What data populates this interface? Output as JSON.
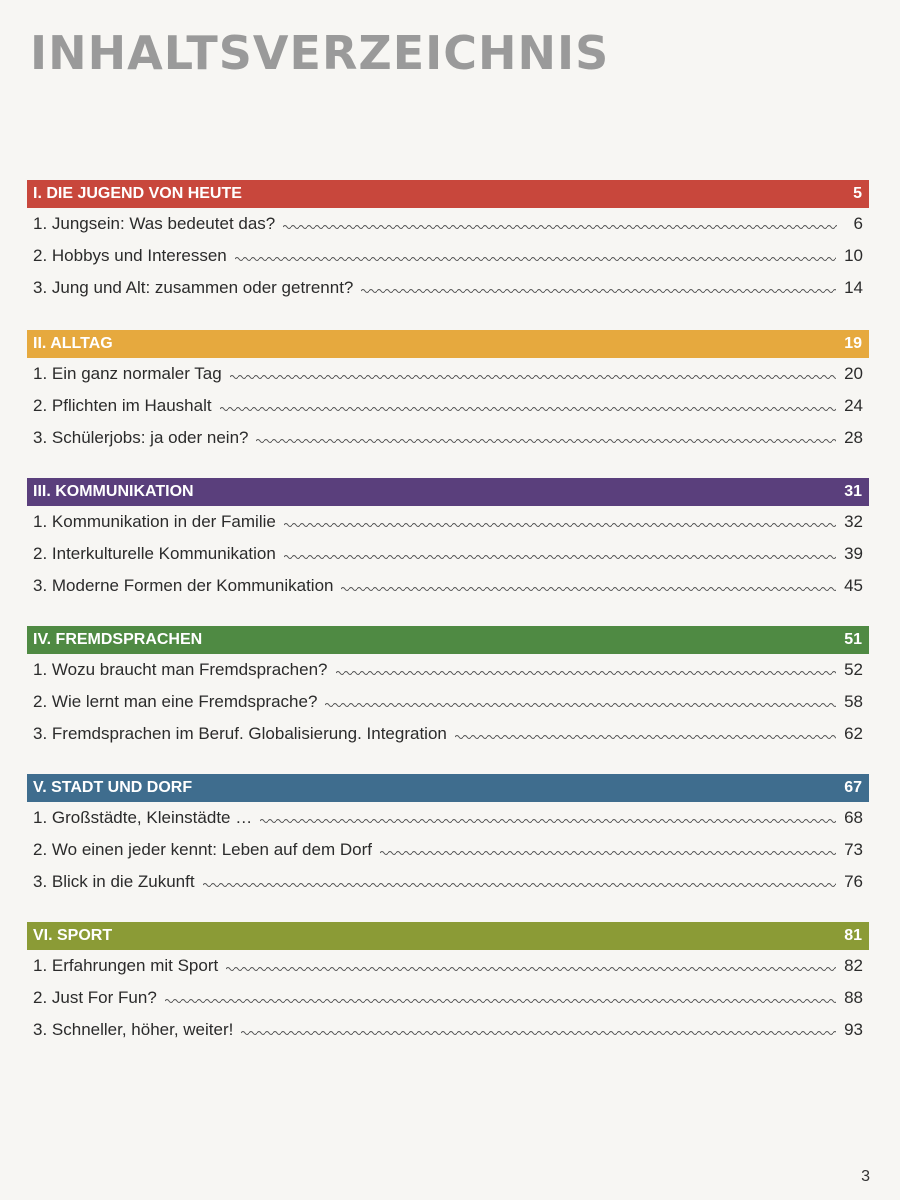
{
  "title": "INHALTSVERZEICHNIS",
  "page_number": "3",
  "colors": {
    "chapter1": "#c8473c",
    "chapter2": "#e6a93e",
    "chapter3": "#5a3f7c",
    "chapter4": "#4f8a43",
    "chapter5": "#3f6d8e",
    "chapter6": "#8b9b36"
  },
  "chapters": [
    {
      "title": "I. DIE JUGEND VON HEUTE",
      "page": "5",
      "entries": [
        {
          "label": "1. Jungsein: Was bedeutet das?",
          "page": "6"
        },
        {
          "label": "2. Hobbys und Interessen",
          "page": "10"
        },
        {
          "label": "3. Jung und Alt: zusammen oder getrennt?",
          "page": "14"
        }
      ]
    },
    {
      "title": "II. ALLTAG",
      "page": "19",
      "entries": [
        {
          "label": "1. Ein ganz normaler Tag",
          "page": "20"
        },
        {
          "label": "2. Pflichten im Haushalt",
          "page": "24"
        },
        {
          "label": "3. Schülerjobs: ja oder nein?",
          "page": "28"
        }
      ]
    },
    {
      "title": "III. KOMMUNIKATION",
      "page": "31",
      "entries": [
        {
          "label": "1. Kommunikation in der Familie",
          "page": "32"
        },
        {
          "label": "2. Interkulturelle Kommunikation",
          "page": "39"
        },
        {
          "label": "3. Moderne Formen der Kommunikation",
          "page": "45"
        }
      ]
    },
    {
      "title": "IV. FREMDSPRACHEN",
      "page": "51",
      "entries": [
        {
          "label": "1. Wozu braucht man Fremdsprachen?",
          "page": "52"
        },
        {
          "label": "2. Wie lernt man eine Fremdsprache?",
          "page": "58"
        },
        {
          "label": "3. Fremdsprachen im Beruf. Globalisierung. Integration",
          "page": "62"
        }
      ]
    },
    {
      "title": "V. STADT UND DORF",
      "page": "67",
      "entries": [
        {
          "label": "1. Großstädte, Kleinstädte …",
          "page": "68"
        },
        {
          "label": "2. Wo einen jeder kennt: Leben auf dem Dorf",
          "page": "73"
        },
        {
          "label": "3. Blick in die Zukunft",
          "page": "76"
        }
      ]
    },
    {
      "title": "VI. SPORT",
      "page": "81",
      "entries": [
        {
          "label": "1. Erfahrungen mit Sport",
          "page": "82"
        },
        {
          "label": "2. Just For Fun?",
          "page": "88"
        },
        {
          "label": "3. Schneller, höher, weiter!",
          "page": "93"
        }
      ]
    }
  ]
}
